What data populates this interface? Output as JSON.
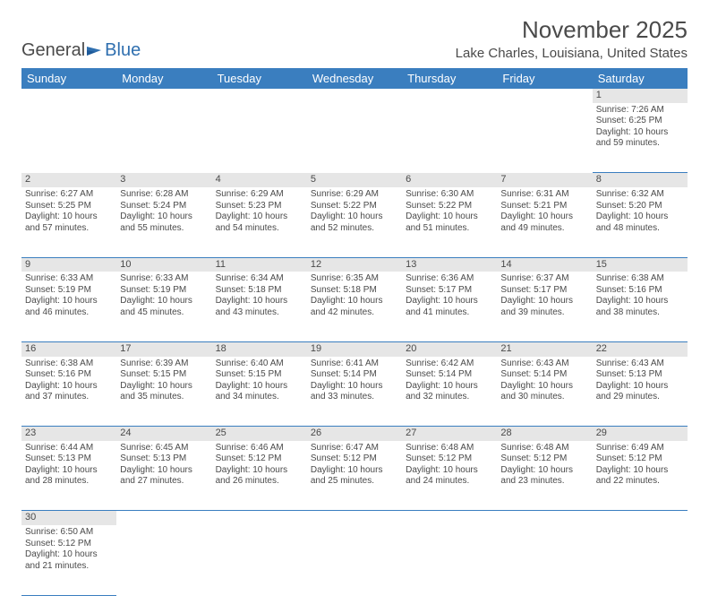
{
  "brand": {
    "general": "General",
    "blue": "Blue"
  },
  "title": "November 2025",
  "location": "Lake Charles, Louisiana, United States",
  "colors": {
    "header_bg": "#3a7ebf",
    "header_text": "#ffffff",
    "daynum_bg": "#e6e6e6",
    "border": "#3a7ebf",
    "text": "#4a4a4a",
    "logo_blue": "#2f6faf"
  },
  "weekdays": [
    "Sunday",
    "Monday",
    "Tuesday",
    "Wednesday",
    "Thursday",
    "Friday",
    "Saturday"
  ],
  "weeks": [
    [
      null,
      null,
      null,
      null,
      null,
      null,
      {
        "n": "1",
        "sr": "7:26 AM",
        "ss": "6:25 PM",
        "dl": "10 hours and 59 minutes."
      }
    ],
    [
      {
        "n": "2",
        "sr": "6:27 AM",
        "ss": "5:25 PM",
        "dl": "10 hours and 57 minutes."
      },
      {
        "n": "3",
        "sr": "6:28 AM",
        "ss": "5:24 PM",
        "dl": "10 hours and 55 minutes."
      },
      {
        "n": "4",
        "sr": "6:29 AM",
        "ss": "5:23 PM",
        "dl": "10 hours and 54 minutes."
      },
      {
        "n": "5",
        "sr": "6:29 AM",
        "ss": "5:22 PM",
        "dl": "10 hours and 52 minutes."
      },
      {
        "n": "6",
        "sr": "6:30 AM",
        "ss": "5:22 PM",
        "dl": "10 hours and 51 minutes."
      },
      {
        "n": "7",
        "sr": "6:31 AM",
        "ss": "5:21 PM",
        "dl": "10 hours and 49 minutes."
      },
      {
        "n": "8",
        "sr": "6:32 AM",
        "ss": "5:20 PM",
        "dl": "10 hours and 48 minutes."
      }
    ],
    [
      {
        "n": "9",
        "sr": "6:33 AM",
        "ss": "5:19 PM",
        "dl": "10 hours and 46 minutes."
      },
      {
        "n": "10",
        "sr": "6:33 AM",
        "ss": "5:19 PM",
        "dl": "10 hours and 45 minutes."
      },
      {
        "n": "11",
        "sr": "6:34 AM",
        "ss": "5:18 PM",
        "dl": "10 hours and 43 minutes."
      },
      {
        "n": "12",
        "sr": "6:35 AM",
        "ss": "5:18 PM",
        "dl": "10 hours and 42 minutes."
      },
      {
        "n": "13",
        "sr": "6:36 AM",
        "ss": "5:17 PM",
        "dl": "10 hours and 41 minutes."
      },
      {
        "n": "14",
        "sr": "6:37 AM",
        "ss": "5:17 PM",
        "dl": "10 hours and 39 minutes."
      },
      {
        "n": "15",
        "sr": "6:38 AM",
        "ss": "5:16 PM",
        "dl": "10 hours and 38 minutes."
      }
    ],
    [
      {
        "n": "16",
        "sr": "6:38 AM",
        "ss": "5:16 PM",
        "dl": "10 hours and 37 minutes."
      },
      {
        "n": "17",
        "sr": "6:39 AM",
        "ss": "5:15 PM",
        "dl": "10 hours and 35 minutes."
      },
      {
        "n": "18",
        "sr": "6:40 AM",
        "ss": "5:15 PM",
        "dl": "10 hours and 34 minutes."
      },
      {
        "n": "19",
        "sr": "6:41 AM",
        "ss": "5:14 PM",
        "dl": "10 hours and 33 minutes."
      },
      {
        "n": "20",
        "sr": "6:42 AM",
        "ss": "5:14 PM",
        "dl": "10 hours and 32 minutes."
      },
      {
        "n": "21",
        "sr": "6:43 AM",
        "ss": "5:14 PM",
        "dl": "10 hours and 30 minutes."
      },
      {
        "n": "22",
        "sr": "6:43 AM",
        "ss": "5:13 PM",
        "dl": "10 hours and 29 minutes."
      }
    ],
    [
      {
        "n": "23",
        "sr": "6:44 AM",
        "ss": "5:13 PM",
        "dl": "10 hours and 28 minutes."
      },
      {
        "n": "24",
        "sr": "6:45 AM",
        "ss": "5:13 PM",
        "dl": "10 hours and 27 minutes."
      },
      {
        "n": "25",
        "sr": "6:46 AM",
        "ss": "5:12 PM",
        "dl": "10 hours and 26 minutes."
      },
      {
        "n": "26",
        "sr": "6:47 AM",
        "ss": "5:12 PM",
        "dl": "10 hours and 25 minutes."
      },
      {
        "n": "27",
        "sr": "6:48 AM",
        "ss": "5:12 PM",
        "dl": "10 hours and 24 minutes."
      },
      {
        "n": "28",
        "sr": "6:48 AM",
        "ss": "5:12 PM",
        "dl": "10 hours and 23 minutes."
      },
      {
        "n": "29",
        "sr": "6:49 AM",
        "ss": "5:12 PM",
        "dl": "10 hours and 22 minutes."
      }
    ],
    [
      {
        "n": "30",
        "sr": "6:50 AM",
        "ss": "5:12 PM",
        "dl": "10 hours and 21 minutes."
      },
      null,
      null,
      null,
      null,
      null,
      null
    ]
  ],
  "labels": {
    "sunrise": "Sunrise: ",
    "sunset": "Sunset: ",
    "daylight": "Daylight: "
  }
}
